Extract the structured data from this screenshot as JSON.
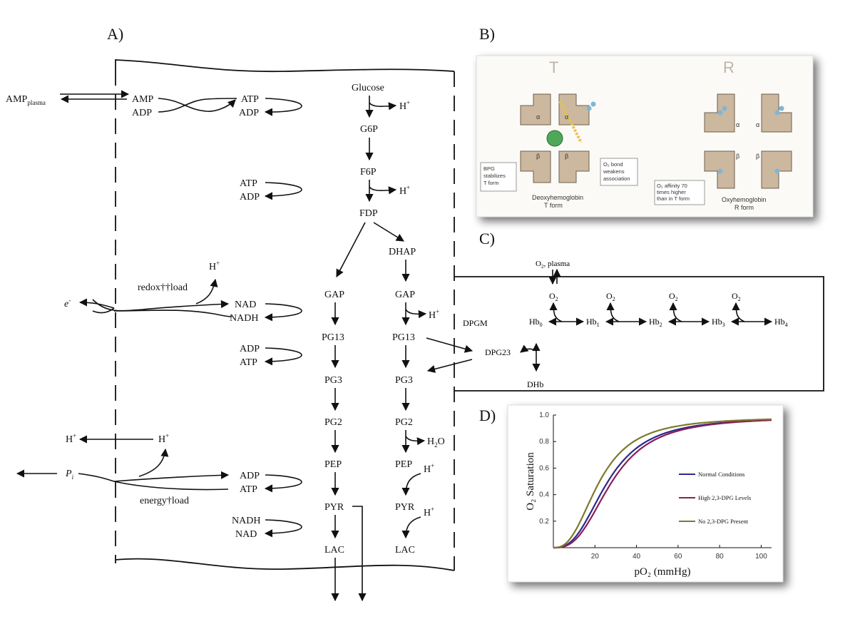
{
  "panels": {
    "a": "A)",
    "b": "B)",
    "c": "C)",
    "d": "D)"
  },
  "panel_a": {
    "amp_plasma_main": "AMP",
    "amp_plasma_sub": "plasma",
    "amp": "AMP",
    "adp1": "ADP",
    "atp1": "ATP",
    "adp1b": "ADP",
    "atp2": "ATP",
    "adp2": "ADP",
    "redox_load": "redox††load",
    "hplus_redox": "H",
    "e_minus": "e",
    "nad": "NAD",
    "nadh": "NADH",
    "adp3": "ADP",
    "atp3": "ATP",
    "hplus_left": "H",
    "hplus_mid": "H",
    "pi": "P",
    "pi_sub": "i",
    "adp4": "ADP",
    "atp4": "ATP",
    "energy_load": "energy†load",
    "nadh2": "NADH",
    "nad2": "NAD",
    "glucose": "Glucose",
    "hplus1": "H",
    "g6p": "G6P",
    "f6p": "F6P",
    "hplus2": "H",
    "fdp": "FDP",
    "dhap": "DHAP",
    "gap_l": "GAP",
    "gap_r": "GAP",
    "hplus3": "H",
    "pg13_l": "PG13",
    "pg13_r": "PG13",
    "pg3_l": "PG3",
    "pg3_r": "PG3",
    "pg2_l": "PG2",
    "pg2_r": "PG2",
    "h2o": "H",
    "h2o_sub": "2",
    "h2o_o": "O",
    "pep_l": "PEP",
    "pep_r": "PEP",
    "hplus4": "H",
    "pyr_l": "PYR",
    "pyr_r": "PYR",
    "hplus5": "H",
    "lac_l": "LAC",
    "lac_r": "LAC",
    "plus": "+",
    "minus": "-"
  },
  "panel_b": {
    "t_letter": "T",
    "r_letter": "R",
    "bpg_note": [
      "BPG",
      "stabilizes",
      "T form"
    ],
    "o2_note": [
      "O₂ bond",
      "weakens",
      "association"
    ],
    "affinity_note": [
      "O₂ affinity 70",
      "times higher",
      "than in T form"
    ],
    "deoxy_caption": [
      "Deoxyhemoglobin",
      "T form"
    ],
    "oxy_caption": [
      "Oxyhemoglobin",
      "R form"
    ],
    "alpha": "α",
    "beta": "β"
  },
  "panel_c": {
    "o2_plasma": "O",
    "o2_plasma_sub": "2",
    "o2_plasma_rest": ", plasma",
    "o2": "O",
    "o2_sub": "2",
    "dpgm": "DPGM",
    "dpg23": "DPG23",
    "dhb": "DHb",
    "hb": "Hb",
    "hb_subs": [
      "0",
      "1",
      "2",
      "3",
      "4"
    ]
  },
  "chart_data": {
    "type": "line",
    "title": "",
    "xlabel": "pO₂ (mmHg)",
    "ylabel": "O₂ Saturation",
    "xlim": [
      0,
      105
    ],
    "ylim": [
      0,
      1.0
    ],
    "xticks": [
      20,
      40,
      60,
      80,
      100
    ],
    "yticks": [
      0.2,
      0.4,
      0.6,
      0.8,
      1.0
    ],
    "legend_position": "right",
    "series": [
      {
        "name": "Normal Conditions",
        "color": "#2c2a8c",
        "p50": 26,
        "n": 2.7,
        "max": 0.985
      },
      {
        "name": "High 2,3-DPG Levels",
        "color": "#8a1f5a",
        "p50": 28,
        "n": 2.8,
        "max": 0.985
      },
      {
        "name": "No 2,3-DPG Present",
        "color": "#7d7a2a",
        "p50": 22,
        "n": 2.6,
        "max": 0.985
      }
    ]
  }
}
